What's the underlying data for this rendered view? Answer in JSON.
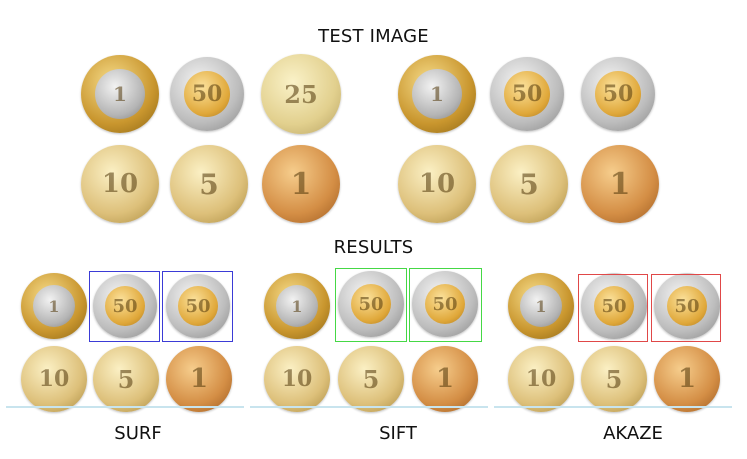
{
  "test_title": "TEST IMAGE",
  "results_title": "RESULTS",
  "coins": {
    "lira_1": "1",
    "kurus_50": "50",
    "kurus_25": "25",
    "kurus_10": "10",
    "kurus_5": "5",
    "kurus_1": "1"
  },
  "methods": [
    {
      "label": "SURF",
      "box_color": "#3b3bd6"
    },
    {
      "label": "SIFT",
      "box_color": "#45d845"
    },
    {
      "label": "AKAZE",
      "box_color": "#e04848"
    }
  ]
}
